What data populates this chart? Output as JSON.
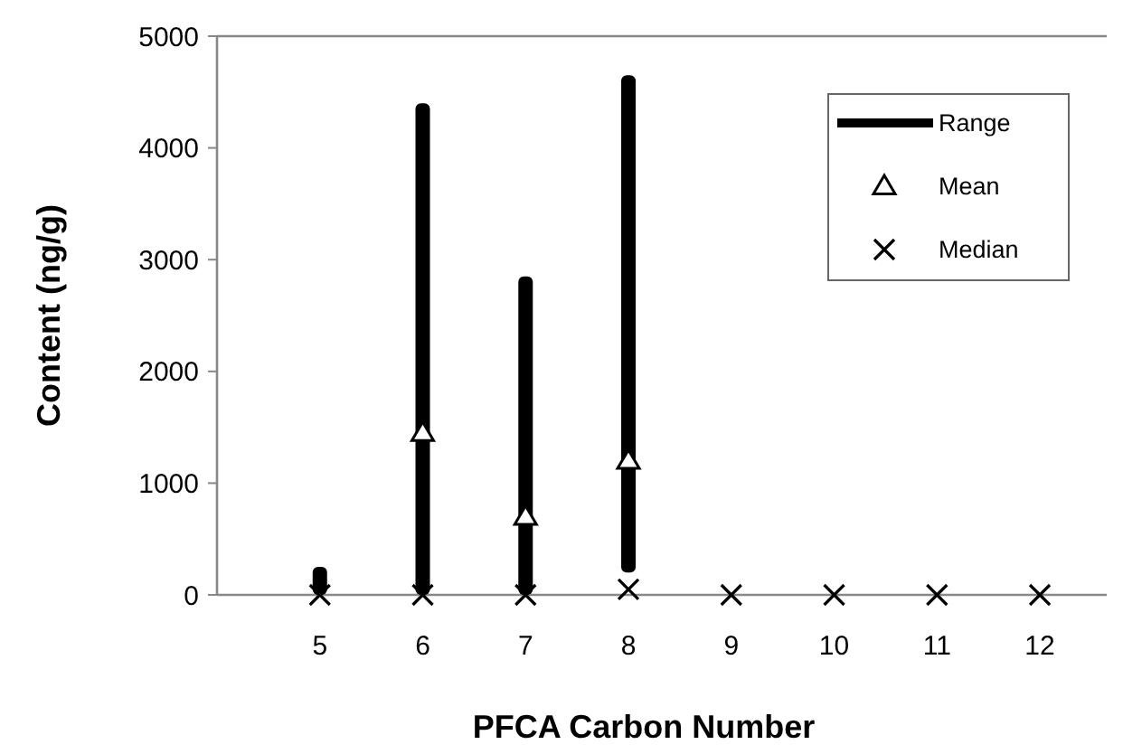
{
  "chart_data": {
    "type": "bar",
    "xlabel": "PFCA Carbon Number",
    "ylabel": "Content (ng/g)",
    "x": [
      5,
      6,
      7,
      8,
      9,
      10,
      11,
      12
    ],
    "xlim": [
      4,
      12.65
    ],
    "xticks": [
      5,
      6,
      7,
      8,
      9,
      10,
      11,
      12
    ],
    "ylim": [
      0,
      5000
    ],
    "yticks": [
      0,
      1000,
      2000,
      3000,
      4000,
      5000
    ],
    "grid": false,
    "legend": "top right",
    "series": [
      {
        "name": "Range",
        "color": "#000000",
        "base": [
          0,
          0,
          0,
          200,
          null,
          null,
          null,
          null
        ],
        "values": [
          250,
          4400,
          2850,
          4450,
          null,
          null,
          null,
          null
        ]
      },
      {
        "name": "Mean",
        "type": "scatter",
        "marker": "triangle",
        "color": "#000000",
        "values": [
          null,
          1450,
          700,
          1200,
          null,
          null,
          null,
          null
        ]
      },
      {
        "name": "Median",
        "type": "scatter",
        "marker": "cross",
        "color": "#000000",
        "values": [
          0,
          0,
          0,
          50,
          0,
          0,
          0,
          0
        ]
      }
    ]
  }
}
